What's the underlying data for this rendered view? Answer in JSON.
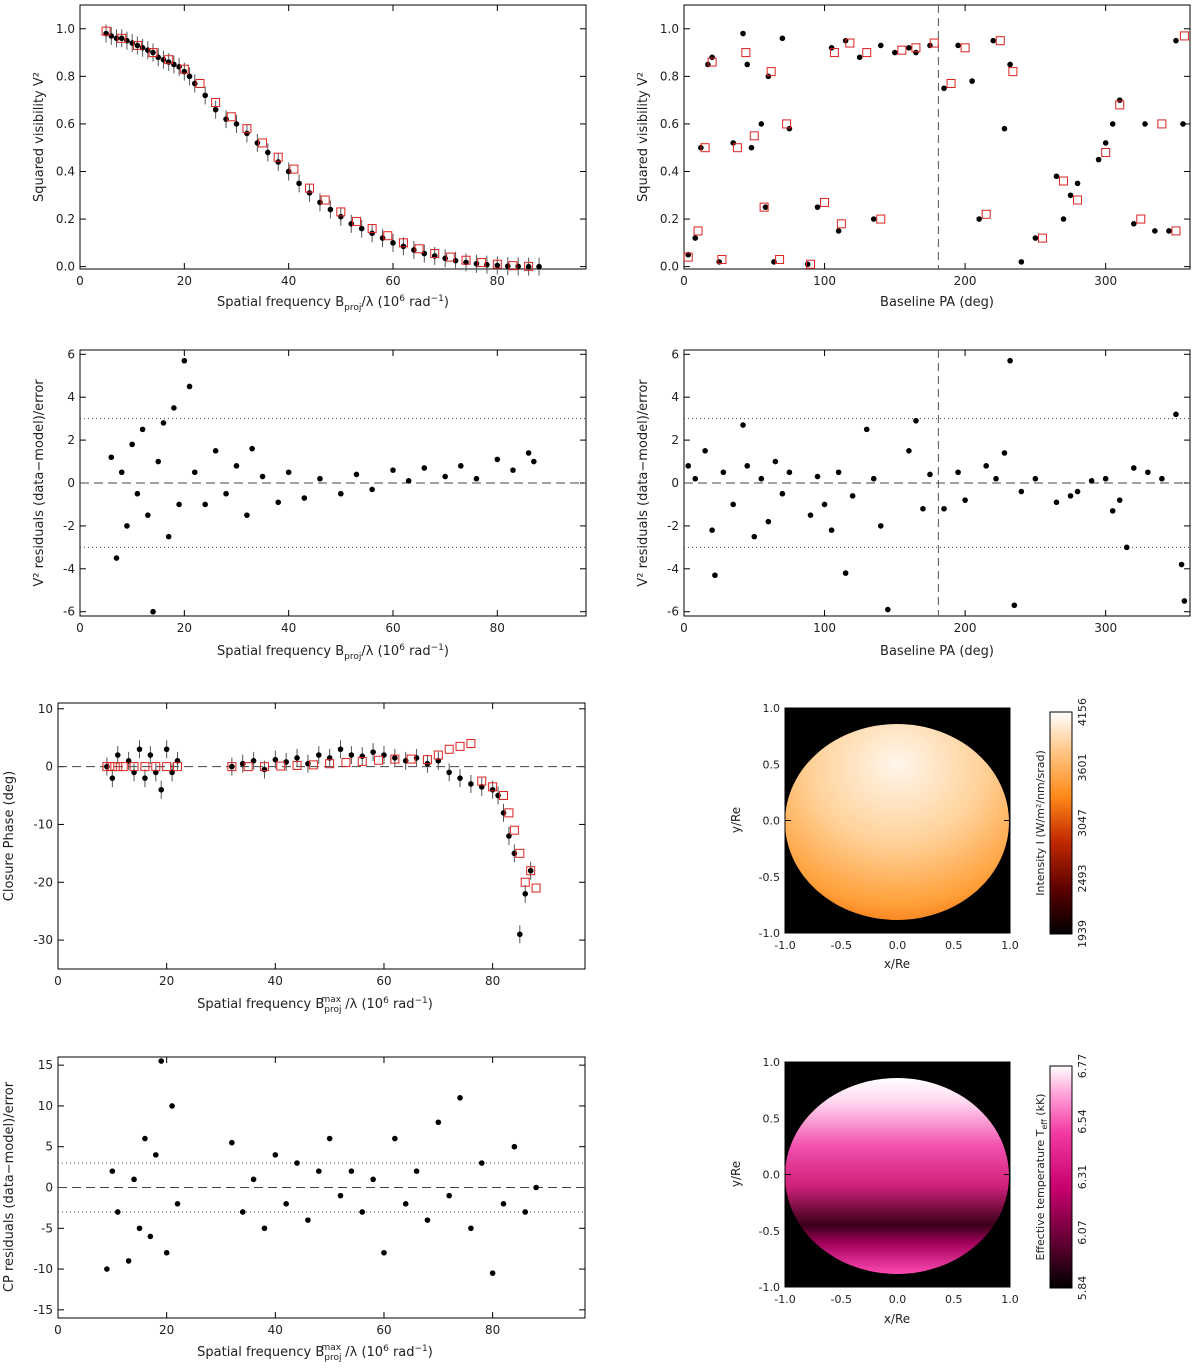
{
  "chart_data": [
    {
      "id": "v2-vs-freq",
      "type": "scatter",
      "xlabel": "Spatial frequency B_proj/λ (10^6 rad^-1)",
      "ylabel": "Squared visibility V²",
      "xlim": [
        0,
        97
      ],
      "ylim": [
        -0.01,
        1.1
      ],
      "xticks": [
        0,
        20,
        40,
        60,
        80
      ],
      "yticks": [
        0.0,
        0.2,
        0.4,
        0.6,
        0.8,
        1.0
      ],
      "series": [
        {
          "name": "data",
          "marker": "dot-errorbar",
          "color": "#000000",
          "x": [
            5,
            6,
            7,
            8,
            9,
            10,
            11,
            12,
            13,
            14,
            15,
            16,
            17,
            18,
            19,
            20,
            21,
            22,
            24,
            26,
            28,
            30,
            32,
            34,
            36,
            38,
            40,
            42,
            44,
            46,
            48,
            50,
            52,
            54,
            56,
            58,
            60,
            62,
            64,
            66,
            68,
            70,
            72,
            74,
            76,
            78,
            80,
            82,
            84,
            86,
            88
          ],
          "y": [
            0.98,
            0.97,
            0.96,
            0.96,
            0.95,
            0.94,
            0.93,
            0.92,
            0.91,
            0.9,
            0.88,
            0.87,
            0.86,
            0.85,
            0.84,
            0.82,
            0.8,
            0.77,
            0.72,
            0.66,
            0.62,
            0.6,
            0.56,
            0.52,
            0.48,
            0.44,
            0.4,
            0.35,
            0.31,
            0.27,
            0.24,
            0.21,
            0.18,
            0.16,
            0.14,
            0.12,
            0.1,
            0.085,
            0.07,
            0.055,
            0.045,
            0.035,
            0.025,
            0.018,
            0.012,
            0.008,
            0.005,
            0.002,
            0.001,
            0.0,
            0.0
          ]
        },
        {
          "name": "model",
          "marker": "open-square",
          "color": "#e02020",
          "x": [
            5,
            8,
            11,
            14,
            17,
            20,
            23,
            26,
            29,
            32,
            35,
            38,
            41,
            44,
            47,
            50,
            53,
            56,
            59,
            62,
            65,
            68,
            71,
            74,
            77,
            80,
            83,
            86
          ],
          "y": [
            0.99,
            0.96,
            0.93,
            0.9,
            0.87,
            0.83,
            0.77,
            0.69,
            0.63,
            0.58,
            0.52,
            0.46,
            0.41,
            0.33,
            0.28,
            0.23,
            0.19,
            0.16,
            0.13,
            0.1,
            0.075,
            0.055,
            0.04,
            0.027,
            0.017,
            0.01,
            0.004,
            0.001
          ]
        }
      ]
    },
    {
      "id": "v2-vs-pa",
      "type": "scatter",
      "xlabel": "Baseline PA (deg)",
      "ylabel": "Squared visibility V²",
      "xlim": [
        0,
        360
      ],
      "ylim": [
        -0.01,
        1.1
      ],
      "xticks": [
        0,
        100,
        200,
        300
      ],
      "yticks": [
        0.0,
        0.2,
        0.4,
        0.6,
        0.8,
        1.0
      ],
      "vline": 181,
      "series": [
        {
          "name": "data",
          "marker": "dot",
          "color": "#000000",
          "x": [
            3,
            8,
            12,
            17,
            20,
            25,
            35,
            42,
            45,
            48,
            55,
            58,
            60,
            64,
            70,
            75,
            88,
            95,
            105,
            110,
            115,
            125,
            135,
            140,
            150,
            160,
            165,
            175,
            185,
            195,
            205,
            210,
            220,
            228,
            232,
            240,
            250,
            265,
            270,
            275,
            280,
            295,
            300,
            305,
            310,
            320,
            328,
            335,
            345,
            350,
            355
          ],
          "y": [
            0.05,
            0.12,
            0.5,
            0.85,
            0.88,
            0.02,
            0.52,
            0.98,
            0.85,
            0.5,
            0.6,
            0.25,
            0.8,
            0.02,
            0.96,
            0.58,
            0.01,
            0.25,
            0.92,
            0.15,
            0.95,
            0.88,
            0.2,
            0.93,
            0.9,
            0.92,
            0.9,
            0.93,
            0.75,
            0.93,
            0.78,
            0.2,
            0.95,
            0.58,
            0.85,
            0.02,
            0.12,
            0.38,
            0.2,
            0.3,
            0.35,
            0.45,
            0.52,
            0.6,
            0.7,
            0.18,
            0.6,
            0.15,
            0.15,
            0.95,
            0.6
          ]
        },
        {
          "name": "model",
          "marker": "open-square",
          "color": "#e02020",
          "x": [
            3,
            10,
            15,
            20,
            27,
            38,
            44,
            50,
            57,
            62,
            68,
            73,
            90,
            100,
            107,
            112,
            118,
            130,
            140,
            155,
            165,
            178,
            190,
            200,
            215,
            225,
            234,
            255,
            270,
            280,
            300,
            310,
            325,
            340,
            350,
            356
          ],
          "y": [
            0.04,
            0.15,
            0.5,
            0.86,
            0.03,
            0.5,
            0.9,
            0.55,
            0.25,
            0.82,
            0.03,
            0.6,
            0.01,
            0.27,
            0.9,
            0.18,
            0.94,
            0.9,
            0.2,
            0.91,
            0.92,
            0.94,
            0.77,
            0.92,
            0.22,
            0.95,
            0.82,
            0.12,
            0.36,
            0.28,
            0.48,
            0.68,
            0.2,
            0.6,
            0.15,
            0.97
          ]
        }
      ]
    },
    {
      "id": "v2-res-vs-freq",
      "type": "scatter",
      "xlabel": "Spatial frequency B_proj/λ (10^6 rad^-1)",
      "ylabel": "V² residuals (data-model)/error",
      "xlim": [
        0,
        97
      ],
      "ylim": [
        -6.2,
        6.2
      ],
      "xticks": [
        0,
        20,
        40,
        60,
        80
      ],
      "yticks": [
        -6,
        -4,
        -2,
        0,
        2,
        4,
        6
      ],
      "hlines_dotted": [
        3,
        -3
      ],
      "hline_dashed": 0,
      "series": [
        {
          "name": "residuals",
          "marker": "dot",
          "color": "#000000",
          "x": [
            6,
            7,
            8,
            9,
            10,
            11,
            12,
            13,
            14,
            15,
            16,
            17,
            18,
            19,
            20,
            21,
            22,
            24,
            26,
            28,
            30,
            32,
            33,
            35,
            38,
            40,
            43,
            46,
            50,
            53,
            56,
            60,
            63,
            66,
            70,
            73,
            76,
            80,
            83,
            86,
            87
          ],
          "y": [
            1.2,
            -3.5,
            0.5,
            -2,
            1.8,
            -0.5,
            2.5,
            -1.5,
            -6,
            1,
            2.8,
            -2.5,
            3.5,
            -1,
            5.7,
            4.5,
            0.5,
            -1,
            1.5,
            -0.5,
            0.8,
            -1.5,
            1.6,
            0.3,
            -0.9,
            0.5,
            -0.7,
            0.2,
            -0.5,
            0.4,
            -0.3,
            0.6,
            0.1,
            0.7,
            0.3,
            0.8,
            0.2,
            1.1,
            0.6,
            1.4,
            1.0
          ]
        }
      ]
    },
    {
      "id": "v2-res-vs-pa",
      "type": "scatter",
      "xlabel": "Baseline PA (deg)",
      "ylabel": "V² residuals (data-model)/error",
      "xlim": [
        0,
        360
      ],
      "ylim": [
        -6.2,
        6.2
      ],
      "xticks": [
        0,
        100,
        200,
        300
      ],
      "yticks": [
        -6,
        -4,
        -2,
        0,
        2,
        4,
        6
      ],
      "vline": 181,
      "hlines_dotted": [
        3,
        -3
      ],
      "hline_dashed": 0,
      "series": [
        {
          "name": "residuals",
          "marker": "dot",
          "color": "#000000",
          "x": [
            3,
            8,
            15,
            20,
            22,
            28,
            35,
            42,
            45,
            50,
            55,
            60,
            65,
            70,
            75,
            90,
            95,
            100,
            105,
            110,
            115,
            120,
            130,
            135,
            140,
            145,
            160,
            165,
            170,
            175,
            185,
            195,
            200,
            215,
            222,
            228,
            232,
            235,
            240,
            250,
            265,
            275,
            280,
            290,
            300,
            305,
            310,
            315,
            320,
            330,
            340,
            350,
            354,
            356
          ],
          "y": [
            0.8,
            0.2,
            1.5,
            -2.2,
            -4.3,
            0.5,
            -1,
            2.7,
            0.8,
            -2.5,
            0.2,
            -1.8,
            1.0,
            -0.5,
            0.5,
            -1.5,
            0.3,
            -1,
            -2.2,
            0.5,
            -4.2,
            -0.6,
            2.5,
            0.2,
            -2,
            -5.9,
            1.5,
            2.9,
            -1.2,
            0.4,
            -1.2,
            0.5,
            -0.8,
            0.8,
            0.2,
            1.4,
            5.7,
            -5.7,
            -0.4,
            0.2,
            -0.9,
            -0.6,
            -0.4,
            0.1,
            0.2,
            -1.3,
            -0.8,
            -3,
            0.7,
            0.5,
            0.2,
            3.2,
            -3.8,
            -5.5
          ]
        }
      ]
    },
    {
      "id": "cp-vs-freq",
      "type": "scatter",
      "xlabel": "Spatial frequency B_proj^max/λ (10^6 rad^-1)",
      "ylabel": "Closure Phase (deg)",
      "xlim": [
        0,
        97
      ],
      "ylim": [
        -35,
        11
      ],
      "xticks": [
        0,
        20,
        40,
        60,
        80
      ],
      "yticks": [
        -30,
        -20,
        -10,
        0,
        10
      ],
      "hline_dashed": 0,
      "series": [
        {
          "name": "data",
          "marker": "dot-errorbar",
          "color": "#000000",
          "x": [
            9,
            10,
            11,
            13,
            14,
            15,
            16,
            17,
            18,
            19,
            20,
            21,
            22,
            32,
            34,
            36,
            38,
            40,
            42,
            44,
            46,
            48,
            50,
            52,
            54,
            56,
            58,
            60,
            62,
            64,
            66,
            68,
            70,
            72,
            74,
            76,
            78,
            80,
            81,
            82,
            83,
            84,
            85,
            86,
            87
          ],
          "y": [
            0,
            -2,
            2,
            1,
            -1,
            3,
            -2,
            2,
            -1,
            -4,
            3,
            -1,
            1,
            0,
            0.5,
            1,
            -0.5,
            1.2,
            0.8,
            1.5,
            0.5,
            2,
            1.5,
            3,
            2,
            1.8,
            2.5,
            2,
            1.5,
            1,
            1.5,
            0.5,
            1,
            -1,
            -2,
            -3,
            -3.5,
            -4,
            -5,
            -8,
            -12,
            -15,
            -29,
            -22,
            -18
          ]
        },
        {
          "name": "model",
          "marker": "open-square",
          "color": "#e02020",
          "x": [
            9,
            10,
            11,
            12,
            14,
            16,
            18,
            20,
            22,
            32,
            35,
            38,
            41,
            44,
            47,
            50,
            53,
            56,
            59,
            62,
            65,
            68,
            70,
            72,
            74,
            76,
            78,
            80,
            82,
            83,
            84,
            85,
            86,
            87,
            88
          ],
          "y": [
            0,
            0,
            0,
            0,
            0,
            0,
            0,
            0,
            0,
            0,
            0,
            0,
            0.1,
            0.2,
            0.3,
            0.5,
            0.7,
            0.9,
            1.1,
            1.3,
            1.3,
            1.2,
            2,
            3,
            3.5,
            4,
            -2.5,
            -3.5,
            -5,
            -8,
            -11,
            -15,
            -20,
            -18,
            -21
          ]
        }
      ]
    },
    {
      "id": "cp-res-vs-freq",
      "type": "scatter",
      "xlabel": "Spatial frequency B_proj^max/λ (10^6 rad^-1)",
      "ylabel": "CP residuals (data-model)/error",
      "xlim": [
        0,
        97
      ],
      "ylim": [
        -16,
        16
      ],
      "xticks": [
        0,
        20,
        40,
        60,
        80
      ],
      "yticks": [
        -15,
        -10,
        -5,
        0,
        5,
        10,
        15
      ],
      "hlines_dotted": [
        3,
        -3
      ],
      "hline_dashed": 0,
      "series": [
        {
          "name": "residuals",
          "marker": "dot",
          "color": "#000000",
          "x": [
            9,
            10,
            11,
            13,
            14,
            15,
            16,
            17,
            18,
            19,
            20,
            21,
            22,
            32,
            34,
            36,
            38,
            40,
            42,
            44,
            46,
            48,
            50,
            52,
            54,
            56,
            58,
            60,
            62,
            64,
            66,
            68,
            70,
            72,
            74,
            76,
            78,
            80,
            82,
            84,
            86,
            88
          ],
          "y": [
            -10,
            2,
            -3,
            -9,
            1,
            -5,
            6,
            -6,
            4,
            15.5,
            -8,
            10,
            -2,
            5.5,
            -3,
            1,
            -5,
            4,
            -2,
            3,
            -4,
            2,
            6,
            -1,
            2,
            -3,
            1,
            -8,
            6,
            -2,
            2,
            -4,
            8,
            -1,
            11,
            -5,
            3,
            -10.5,
            -2,
            5,
            -3,
            0
          ]
        }
      ]
    },
    {
      "id": "intensity-map",
      "type": "heatmap",
      "xlabel": "x/Re",
      "ylabel": "y/Re",
      "xlim": [
        -1.0,
        1.0
      ],
      "ylim": [
        -1.0,
        1.0
      ],
      "xticks": [
        -1.0,
        -0.5,
        0.0,
        0.5,
        1.0
      ],
      "yticks": [
        -1.0,
        -0.5,
        0.0,
        0.5,
        1.0
      ],
      "colorbar_label": "Intensity I (W/m²/nm/srad)",
      "colorbar_ticks": [
        1939,
        2493,
        3047,
        3601,
        4156
      ],
      "colorscale": [
        "#000000",
        "#5a0000",
        "#c22a00",
        "#ff8a1a",
        "#ffc583",
        "#ffffff"
      ]
    },
    {
      "id": "temperature-map",
      "type": "heatmap",
      "xlabel": "x/Re",
      "ylabel": "y/Re",
      "xlim": [
        -1.0,
        1.0
      ],
      "ylim": [
        -1.0,
        1.0
      ],
      "xticks": [
        -1.0,
        -0.5,
        0.0,
        0.5,
        1.0
      ],
      "yticks": [
        -1.0,
        -0.5,
        0.0,
        0.5,
        1.0
      ],
      "colorbar_label": "Effective temperature T_eff (kK)",
      "colorbar_ticks": [
        5.84,
        6.07,
        6.31,
        6.54,
        6.77
      ],
      "colorscale": [
        "#000000",
        "#5e0030",
        "#c8006e",
        "#f23ba2",
        "#ffa6da",
        "#ffffff"
      ]
    }
  ]
}
